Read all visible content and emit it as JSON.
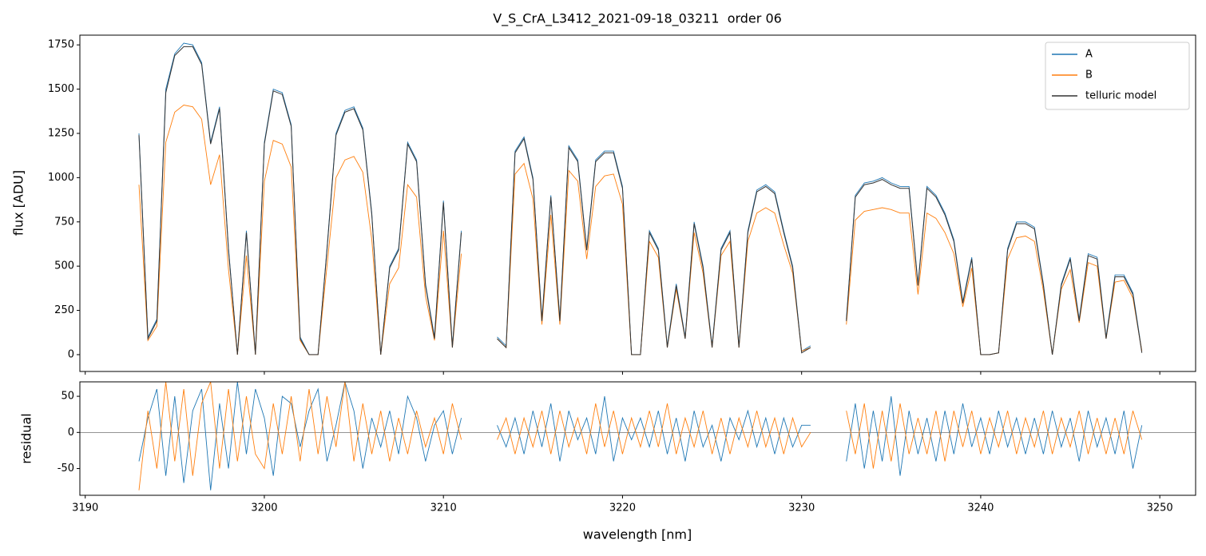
{
  "chart_data": [
    {
      "type": "line",
      "title": "V_S_CrA_L3412_2021-09-18_03211  order 06",
      "y_label": "flux [ADU]",
      "xlim": [
        3189.7,
        3252
      ],
      "ylim": [
        -95,
        1805
      ],
      "xticks": [
        3190,
        3200,
        3210,
        3220,
        3230,
        3240,
        3250
      ],
      "yticks": [
        0,
        250,
        500,
        750,
        1000,
        1250,
        1500,
        1750
      ],
      "legend": "upper right",
      "x": [
        3193,
        3193.5,
        3194,
        3194.5,
        3195,
        3195.5,
        3196,
        3196.5,
        3197,
        3197.5,
        3198,
        3198.5,
        3199,
        3199.5,
        3200,
        3200.5,
        3201,
        3201.5,
        3202,
        3202.5,
        3203,
        3203.5,
        3204,
        3204.5,
        3205,
        3205.5,
        3206,
        3206.5,
        3207,
        3207.5,
        3208,
        3208.5,
        3209,
        3209.5,
        3210,
        3210.5,
        3211,
        3211.5,
        3212,
        3212.5,
        3213,
        3213.5,
        3214,
        3214.5,
        3215,
        3215.5,
        3216,
        3216.5,
        3217,
        3217.5,
        3218,
        3218.5,
        3219,
        3219.5,
        3220,
        3220.5,
        3221,
        3221.5,
        3222,
        3222.5,
        3223,
        3223.5,
        3224,
        3224.5,
        3225,
        3225.5,
        3226,
        3226.5,
        3227,
        3227.5,
        3228,
        3228.5,
        3229,
        3229.5,
        3230,
        3230.5,
        3231,
        3231.5,
        3232,
        3232.5,
        3233,
        3233.5,
        3234,
        3234.5,
        3235,
        3235.5,
        3236,
        3236.5,
        3237,
        3237.5,
        3238,
        3238.5,
        3239,
        3239.5,
        3240,
        3240.5,
        3241,
        3241.5,
        3242,
        3242.5,
        3243,
        3243.5,
        3244,
        3244.5,
        3245,
        3245.5,
        3246,
        3246.5,
        3247,
        3247.5,
        3248,
        3248.5,
        3249
      ],
      "series": [
        {
          "name": "A",
          "color": "#1f77b4",
          "values": [
            1250,
            100,
            200,
            1500,
            1700,
            1760,
            1750,
            1650,
            1200,
            1400,
            600,
            0,
            700,
            0,
            1200,
            1500,
            1480,
            1300,
            100,
            0,
            0,
            600,
            1250,
            1380,
            1400,
            1280,
            800,
            0,
            500,
            600,
            1200,
            1100,
            400,
            100,
            870,
            50,
            700,
            null,
            null,
            null,
            100,
            50,
            1150,
            1230,
            1000,
            200,
            900,
            200,
            1180,
            1100,
            600,
            1100,
            1150,
            1150,
            950,
            0,
            0,
            700,
            600,
            50,
            400,
            100,
            750,
            500,
            50,
            600,
            700,
            50,
            700,
            930,
            960,
            920,
            700,
            500,
            20,
            50,
            null,
            null,
            null,
            200,
            900,
            970,
            980,
            1000,
            970,
            950,
            950,
            400,
            950,
            900,
            800,
            650,
            300,
            550,
            0,
            0,
            10,
            600,
            750,
            750,
            720,
            400,
            0,
            400,
            550,
            200,
            570,
            550,
            100,
            450,
            450,
            350,
            20
          ]
        },
        {
          "name": "B",
          "color": "#ff7f0e",
          "values": [
            960,
            80,
            160,
            1200,
            1370,
            1410,
            1400,
            1330,
            960,
            1130,
            480,
            0,
            560,
            0,
            980,
            1210,
            1190,
            1060,
            80,
            0,
            0,
            500,
            1000,
            1100,
            1120,
            1030,
            650,
            0,
            400,
            490,
            960,
            890,
            330,
            80,
            700,
            40,
            570,
            null,
            null,
            null,
            90,
            40,
            1020,
            1080,
            880,
            170,
            790,
            170,
            1040,
            980,
            540,
            950,
            1010,
            1020,
            850,
            0,
            0,
            640,
            550,
            40,
            370,
            90,
            690,
            460,
            40,
            560,
            640,
            40,
            640,
            800,
            830,
            800,
            620,
            460,
            20,
            40,
            null,
            null,
            null,
            170,
            760,
            810,
            820,
            830,
            820,
            800,
            800,
            340,
            800,
            770,
            690,
            570,
            270,
            490,
            0,
            0,
            10,
            540,
            660,
            670,
            640,
            360,
            0,
            370,
            480,
            180,
            520,
            500,
            90,
            410,
            420,
            320,
            20
          ]
        },
        {
          "name": "telluric model",
          "color": "#333333",
          "values": [
            1240,
            90,
            190,
            1480,
            1690,
            1740,
            1740,
            1640,
            1190,
            1390,
            590,
            0,
            690,
            0,
            1190,
            1490,
            1470,
            1290,
            90,
            0,
            0,
            590,
            1240,
            1370,
            1390,
            1270,
            790,
            0,
            490,
            590,
            1190,
            1090,
            390,
            90,
            860,
            40,
            690,
            null,
            null,
            null,
            90,
            40,
            1140,
            1220,
            990,
            190,
            890,
            190,
            1170,
            1090,
            590,
            1090,
            1140,
            1140,
            940,
            0,
            0,
            690,
            590,
            40,
            390,
            90,
            740,
            490,
            40,
            590,
            690,
            40,
            690,
            920,
            950,
            910,
            690,
            490,
            10,
            40,
            null,
            null,
            null,
            190,
            890,
            960,
            970,
            990,
            960,
            940,
            940,
            390,
            940,
            890,
            790,
            640,
            290,
            540,
            0,
            0,
            10,
            590,
            740,
            740,
            710,
            390,
            0,
            390,
            540,
            190,
            560,
            540,
            90,
            440,
            440,
            340,
            10
          ]
        }
      ]
    },
    {
      "type": "line",
      "x_label": "wavelength [nm]",
      "y_label": "residual",
      "xlim": [
        3189.7,
        3252
      ],
      "ylim": [
        -87,
        70
      ],
      "xticks": [
        3190,
        3200,
        3210,
        3220,
        3230,
        3240,
        3250
      ],
      "yticks": [
        -50,
        0,
        50
      ],
      "hline": 0,
      "x": [
        3193,
        3193.5,
        3194,
        3194.5,
        3195,
        3195.5,
        3196,
        3196.5,
        3197,
        3197.5,
        3198,
        3198.5,
        3199,
        3199.5,
        3200,
        3200.5,
        3201,
        3201.5,
        3202,
        3202.5,
        3203,
        3203.5,
        3204,
        3204.5,
        3205,
        3205.5,
        3206,
        3206.5,
        3207,
        3207.5,
        3208,
        3208.5,
        3209,
        3209.5,
        3210,
        3210.5,
        3211,
        3211.5,
        3212,
        3212.5,
        3213,
        3213.5,
        3214,
        3214.5,
        3215,
        3215.5,
        3216,
        3216.5,
        3217,
        3217.5,
        3218,
        3218.5,
        3219,
        3219.5,
        3220,
        3220.5,
        3221,
        3221.5,
        3222,
        3222.5,
        3223,
        3223.5,
        3224,
        3224.5,
        3225,
        3225.5,
        3226,
        3226.5,
        3227,
        3227.5,
        3228,
        3228.5,
        3229,
        3229.5,
        3230,
        3230.5,
        3231,
        3231.5,
        3232,
        3232.5,
        3233,
        3233.5,
        3234,
        3234.5,
        3235,
        3235.5,
        3236,
        3236.5,
        3237,
        3237.5,
        3238,
        3238.5,
        3239,
        3239.5,
        3240,
        3240.5,
        3241,
        3241.5,
        3242,
        3242.5,
        3243,
        3243.5,
        3244,
        3244.5,
        3245,
        3245.5,
        3246,
        3246.5,
        3247,
        3247.5,
        3248,
        3248.5,
        3249
      ],
      "series": [
        {
          "color": "#1f77b4",
          "values": [
            -40,
            20,
            60,
            -60,
            50,
            -70,
            30,
            60,
            -80,
            40,
            -50,
            70,
            -30,
            60,
            20,
            -60,
            50,
            40,
            -20,
            30,
            60,
            -40,
            10,
            70,
            30,
            -50,
            20,
            -20,
            30,
            -30,
            50,
            20,
            -40,
            10,
            30,
            -30,
            20,
            null,
            null,
            null,
            10,
            -20,
            20,
            -30,
            30,
            -20,
            40,
            -40,
            30,
            -10,
            20,
            -30,
            50,
            -40,
            20,
            -10,
            20,
            -20,
            30,
            -30,
            20,
            -40,
            30,
            -20,
            10,
            -40,
            20,
            -10,
            30,
            -20,
            20,
            -30,
            20,
            -20,
            10,
            10,
            null,
            null,
            null,
            -40,
            40,
            -50,
            30,
            -40,
            50,
            -60,
            30,
            -30,
            20,
            -40,
            30,
            -30,
            40,
            -20,
            20,
            -30,
            30,
            -20,
            20,
            -30,
            20,
            -30,
            30,
            -20,
            20,
            -40,
            30,
            -20,
            20,
            -30,
            30,
            -50,
            10
          ]
        },
        {
          "color": "#ff7f0e",
          "values": [
            -80,
            30,
            -50,
            70,
            -40,
            60,
            -60,
            40,
            70,
            -50,
            60,
            -40,
            50,
            -30,
            -50,
            40,
            -30,
            50,
            -40,
            60,
            -30,
            50,
            -20,
            70,
            -40,
            40,
            -30,
            30,
            -40,
            20,
            -30,
            30,
            -20,
            20,
            -30,
            40,
            -10,
            null,
            null,
            null,
            -10,
            20,
            -30,
            20,
            -20,
            30,
            -30,
            30,
            -20,
            20,
            -30,
            40,
            -20,
            30,
            -30,
            20,
            -20,
            30,
            -20,
            40,
            -30,
            20,
            -20,
            30,
            -30,
            20,
            -30,
            20,
            -20,
            30,
            -20,
            20,
            -30,
            20,
            -20,
            0,
            null,
            null,
            null,
            30,
            -30,
            40,
            -50,
            30,
            -40,
            40,
            -30,
            20,
            -30,
            30,
            -40,
            30,
            -20,
            30,
            -30,
            20,
            -20,
            30,
            -30,
            20,
            -20,
            30,
            -30,
            20,
            -20,
            30,
            -30,
            20,
            -30,
            20,
            -30,
            30,
            -10
          ]
        }
      ]
    }
  ]
}
